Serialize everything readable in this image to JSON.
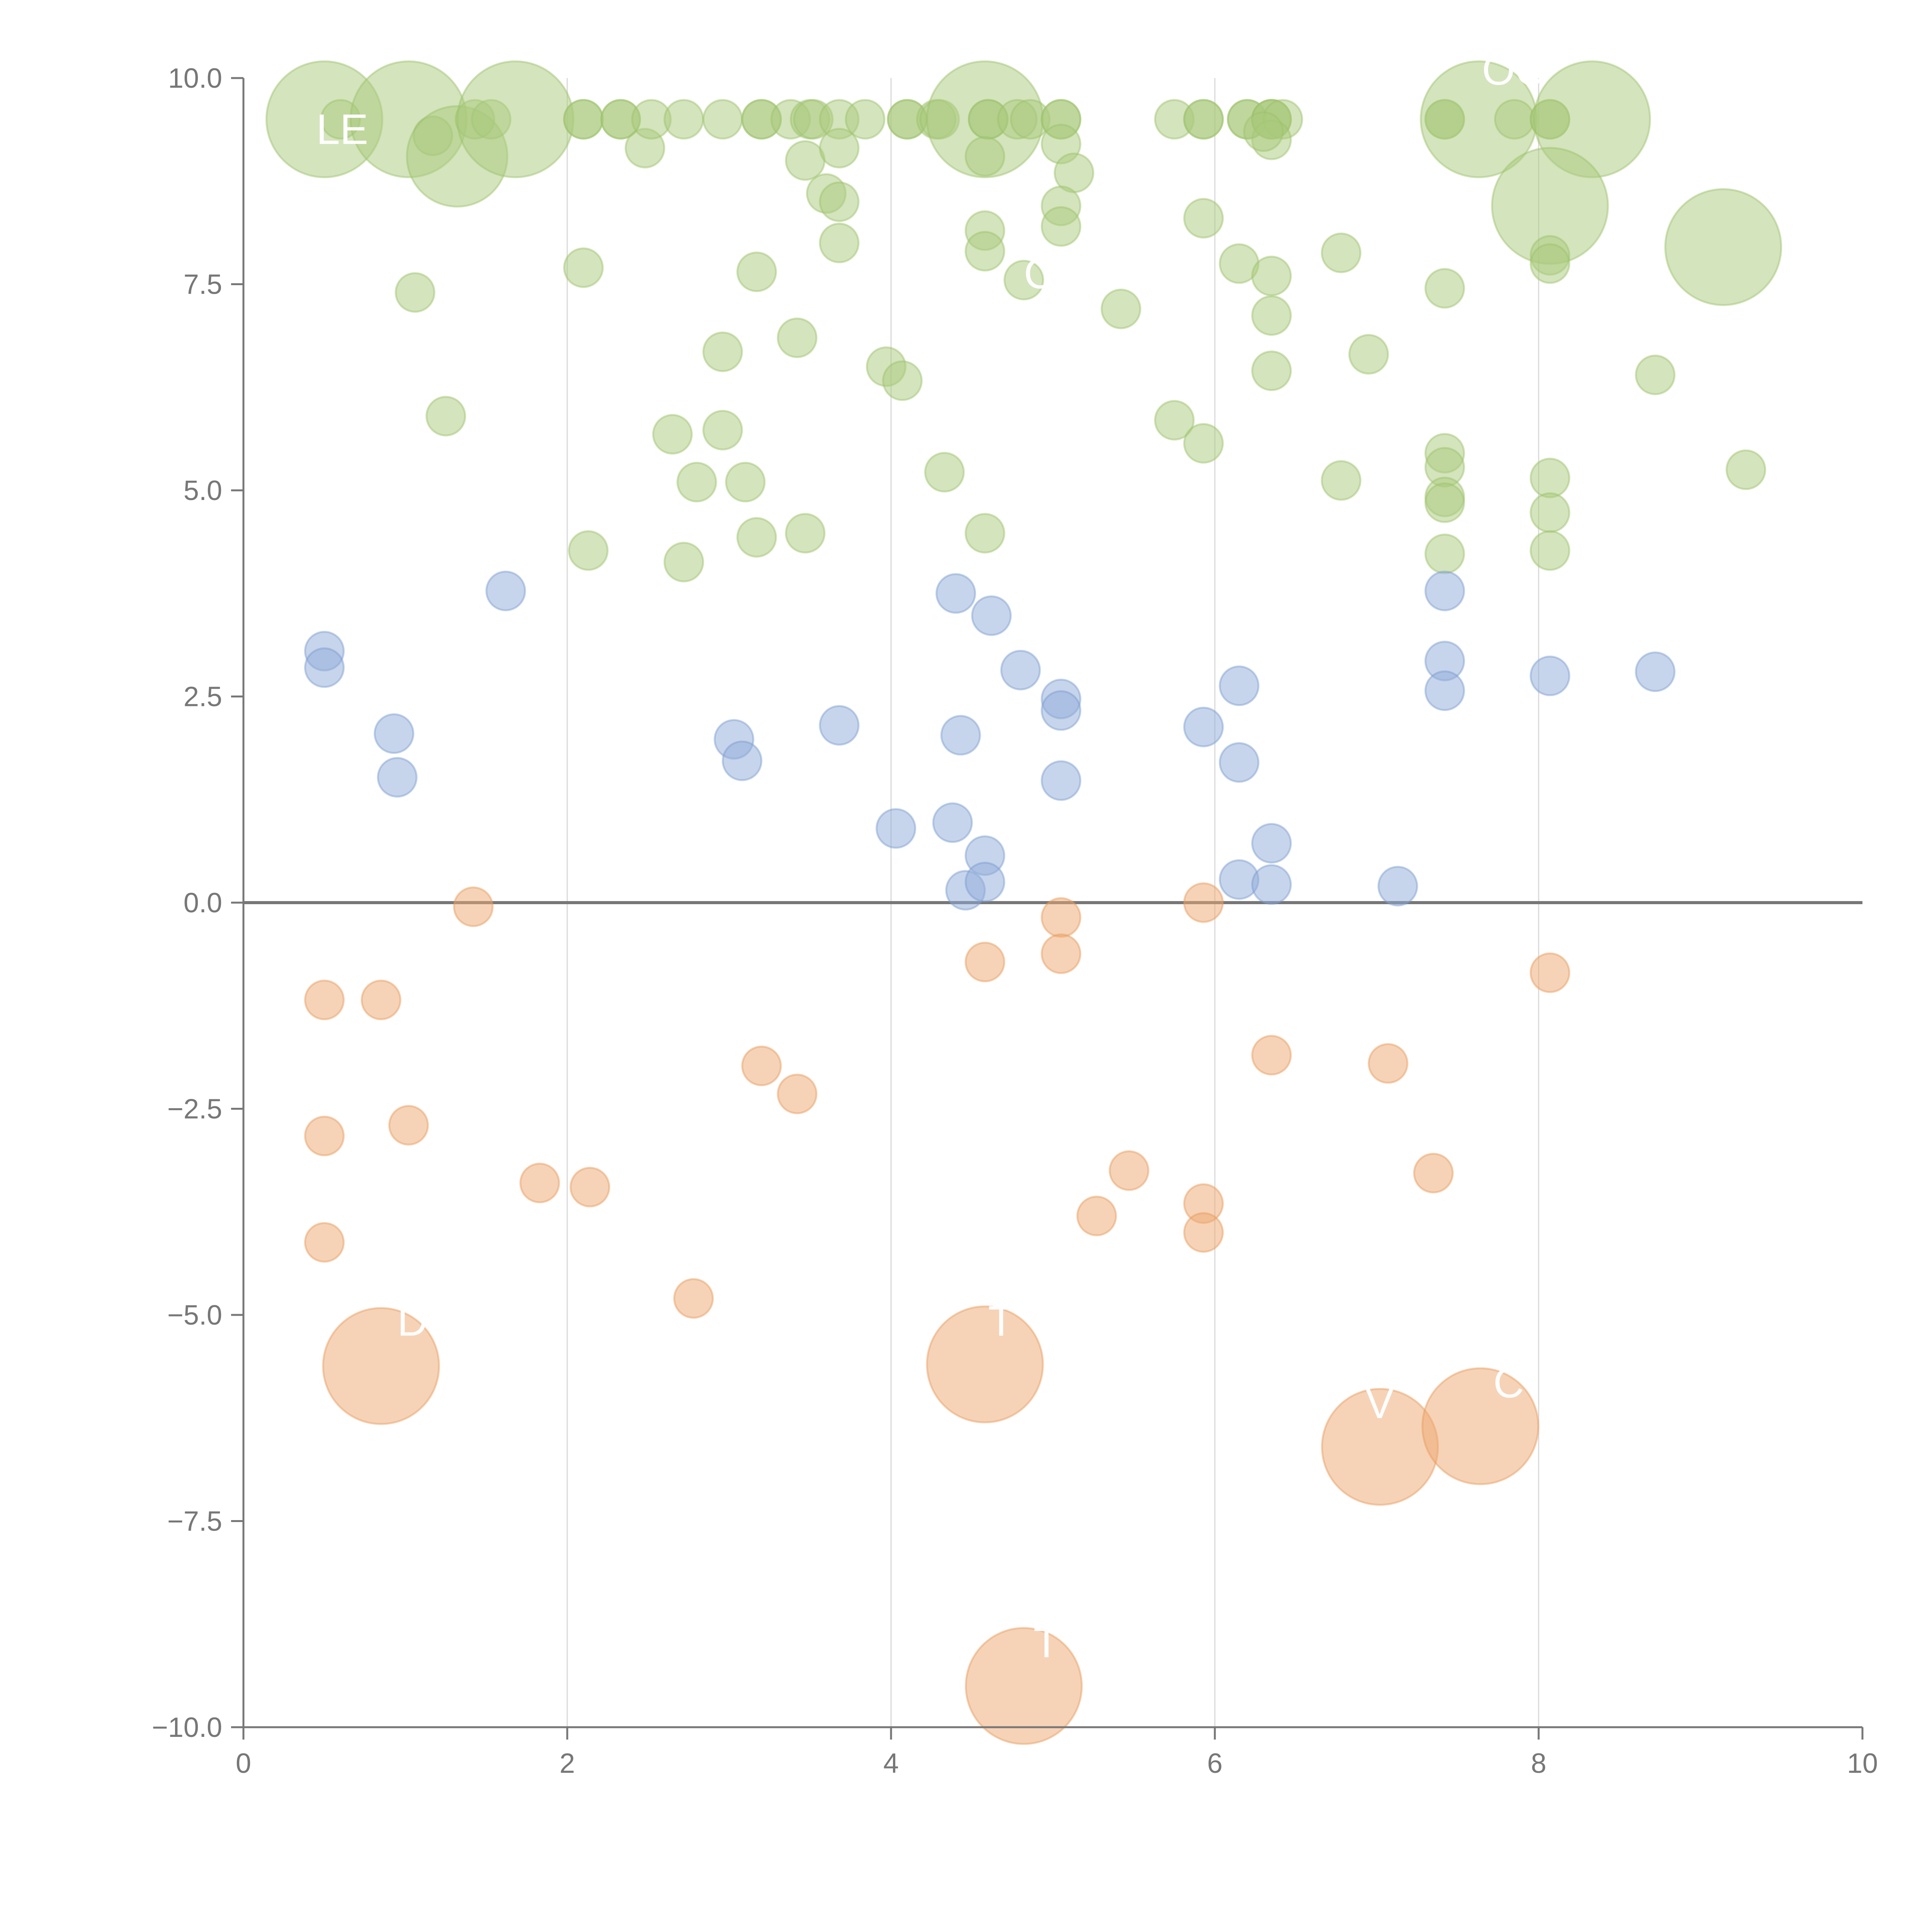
{
  "colors": {
    "axis": "#777777",
    "grid": "#d9d9d9",
    "zero_line": "#777777",
    "green_fill": "#a9c97c",
    "green_stroke": "#9cc26a",
    "green_dark": "#8fba55",
    "blue_fill": "#8fabd9",
    "blue_stroke": "#7b9ccf",
    "orange_fill": "#eda870",
    "orange_stroke": "#e79a5a",
    "label": "#ffffff"
  },
  "chart_data": {
    "type": "scatter",
    "title": "",
    "xlabel": "",
    "ylabel": "",
    "xlim": [
      0,
      10
    ],
    "ylim": [
      -10,
      10
    ],
    "grid": "vertical",
    "xticks": [
      0,
      2,
      4,
      6,
      8,
      10
    ],
    "xtick_labels": [
      "0",
      "2",
      "4",
      "6",
      "8",
      "10"
    ],
    "yticks": [
      -10,
      -7.5,
      -5,
      -2.5,
      0,
      2.5,
      5,
      7.5,
      10
    ],
    "ytick_labels": [
      "−10.0",
      "−7.5",
      "−5.0",
      "−2.5",
      "0.0",
      "2.5",
      "5.0",
      "7.5",
      "10.0"
    ],
    "size_units": {
      "s": 1,
      "m": 1.7,
      "l": 2.6,
      "xl": 3.0
    },
    "series": [
      {
        "name": "green",
        "color": "#a9c97c",
        "points": [
          [
            0.5,
            9.5,
            "xl"
          ],
          [
            0.6,
            9.5,
            "s"
          ],
          [
            1.02,
            9.5,
            "xl"
          ],
          [
            1.17,
            9.3,
            "s"
          ],
          [
            1.32,
            9.05,
            "l"
          ],
          [
            1.43,
            9.5,
            "s"
          ],
          [
            1.53,
            9.5,
            "s"
          ],
          [
            1.68,
            9.5,
            "xl"
          ],
          [
            2.1,
            9.5,
            "s"
          ],
          [
            2.1,
            9.5,
            "s"
          ],
          [
            2.33,
            9.5,
            "s"
          ],
          [
            2.33,
            9.5,
            "s"
          ],
          [
            2.48,
            9.15,
            "s"
          ],
          [
            2.52,
            9.5,
            "s"
          ],
          [
            2.72,
            9.5,
            "s"
          ],
          [
            2.96,
            9.5,
            "s"
          ],
          [
            3.2,
            9.5,
            "s"
          ],
          [
            3.2,
            9.5,
            "s"
          ],
          [
            3.38,
            9.5,
            "s"
          ],
          [
            3.47,
            9.0,
            "s"
          ],
          [
            3.5,
            9.5,
            "s"
          ],
          [
            3.52,
            9.5,
            "s"
          ],
          [
            3.68,
            9.5,
            "s"
          ],
          [
            3.68,
            9.15,
            "s"
          ],
          [
            3.6,
            8.6,
            "s"
          ],
          [
            3.68,
            8.5,
            "s"
          ],
          [
            3.68,
            8.0,
            "s"
          ],
          [
            3.84,
            9.5,
            "s"
          ],
          [
            4.1,
            9.5,
            "s"
          ],
          [
            4.1,
            9.5,
            "s"
          ],
          [
            4.28,
            9.5,
            "s"
          ],
          [
            4.3,
            9.5,
            "s"
          ],
          [
            4.58,
            9.5,
            "xl"
          ],
          [
            4.6,
            9.5,
            "s"
          ],
          [
            4.6,
            9.5,
            "s"
          ],
          [
            4.78,
            9.5,
            "s"
          ],
          [
            4.86,
            9.5,
            "s"
          ],
          [
            4.58,
            9.05,
            "s"
          ],
          [
            5.05,
            9.5,
            "s"
          ],
          [
            5.05,
            9.5,
            "s"
          ],
          [
            5.05,
            9.2,
            "s"
          ],
          [
            5.13,
            8.85,
            "s"
          ],
          [
            5.05,
            8.45,
            "s"
          ],
          [
            5.05,
            8.2,
            "s"
          ],
          [
            4.58,
            8.15,
            "s"
          ],
          [
            4.58,
            7.9,
            "s"
          ],
          [
            4.82,
            7.55,
            "s"
          ],
          [
            5.75,
            9.5,
            "s"
          ],
          [
            5.93,
            9.5,
            "s"
          ],
          [
            5.93,
            9.5,
            "s"
          ],
          [
            6.2,
            9.5,
            "s"
          ],
          [
            6.2,
            9.5,
            "s"
          ],
          [
            6.35,
            9.5,
            "s"
          ],
          [
            6.35,
            9.5,
            "s"
          ],
          [
            6.35,
            9.5,
            "s"
          ],
          [
            6.42,
            9.5,
            "s"
          ],
          [
            6.35,
            9.25,
            "s"
          ],
          [
            6.3,
            9.35,
            "s"
          ],
          [
            7.42,
            9.5,
            "s"
          ],
          [
            7.42,
            9.5,
            "s"
          ],
          [
            7.63,
            9.5,
            "xl"
          ],
          [
            7.85,
            9.5,
            "s"
          ],
          [
            8.07,
            9.5,
            "s"
          ],
          [
            8.07,
            9.5,
            "s"
          ],
          [
            8.33,
            9.5,
            "xl"
          ],
          [
            8.07,
            8.45,
            "xl"
          ],
          [
            8.07,
            7.85,
            "s"
          ],
          [
            8.07,
            7.75,
            "s"
          ],
          [
            9.14,
            7.95,
            "xl"
          ],
          [
            1.06,
            7.4,
            "s"
          ],
          [
            2.1,
            7.7,
            "s"
          ],
          [
            3.17,
            7.65,
            "s"
          ],
          [
            5.93,
            8.3,
            "s"
          ],
          [
            6.15,
            7.75,
            "s"
          ],
          [
            6.35,
            7.6,
            "s"
          ],
          [
            6.35,
            7.12,
            "s"
          ],
          [
            5.42,
            7.2,
            "s"
          ],
          [
            6.78,
            7.88,
            "s"
          ],
          [
            7.42,
            7.45,
            "s"
          ],
          [
            3.42,
            6.85,
            "s"
          ],
          [
            2.96,
            6.68,
            "s"
          ],
          [
            3.97,
            6.5,
            "s"
          ],
          [
            4.07,
            6.33,
            "s"
          ],
          [
            6.35,
            6.45,
            "s"
          ],
          [
            6.95,
            6.65,
            "s"
          ],
          [
            8.72,
            6.4,
            "s"
          ],
          [
            1.25,
            5.9,
            "s"
          ],
          [
            2.65,
            5.68,
            "s"
          ],
          [
            2.96,
            5.73,
            "s"
          ],
          [
            5.75,
            5.85,
            "s"
          ],
          [
            5.93,
            5.57,
            "s"
          ],
          [
            7.42,
            5.45,
            "s"
          ],
          [
            7.42,
            5.28,
            "s"
          ],
          [
            2.8,
            5.1,
            "s"
          ],
          [
            3.1,
            5.1,
            "s"
          ],
          [
            4.33,
            5.22,
            "s"
          ],
          [
            6.78,
            5.12,
            "s"
          ],
          [
            8.07,
            5.15,
            "s"
          ],
          [
            9.28,
            5.25,
            "s"
          ],
          [
            7.42,
            4.92,
            "s"
          ],
          [
            7.42,
            4.85,
            "s"
          ],
          [
            8.07,
            4.73,
            "s"
          ],
          [
            3.17,
            4.43,
            "s"
          ],
          [
            3.47,
            4.48,
            "s"
          ],
          [
            4.58,
            4.48,
            "s"
          ],
          [
            2.13,
            4.27,
            "s"
          ],
          [
            2.72,
            4.13,
            "s"
          ],
          [
            7.42,
            4.23,
            "s"
          ],
          [
            8.07,
            4.27,
            "s"
          ]
        ]
      },
      {
        "name": "blue",
        "color": "#8fabd9",
        "points": [
          [
            0.5,
            3.05,
            "s"
          ],
          [
            0.5,
            2.85,
            "s"
          ],
          [
            0.93,
            2.05,
            "s"
          ],
          [
            0.95,
            1.52,
            "s"
          ],
          [
            1.62,
            3.78,
            "s"
          ],
          [
            3.03,
            1.98,
            "s"
          ],
          [
            3.08,
            1.72,
            "s"
          ],
          [
            3.68,
            2.15,
            "s"
          ],
          [
            4.03,
            0.9,
            "s"
          ],
          [
            4.38,
            0.97,
            "s"
          ],
          [
            4.4,
            3.75,
            "s"
          ],
          [
            4.43,
            2.03,
            "s"
          ],
          [
            4.46,
            0.15,
            "s"
          ],
          [
            4.58,
            0.57,
            "s"
          ],
          [
            4.58,
            0.25,
            "s"
          ],
          [
            4.62,
            3.48,
            "s"
          ],
          [
            4.8,
            2.82,
            "s"
          ],
          [
            5.05,
            2.47,
            "s"
          ],
          [
            5.05,
            2.33,
            "s"
          ],
          [
            5.05,
            1.48,
            "s"
          ],
          [
            5.93,
            2.13,
            "s"
          ],
          [
            6.15,
            2.63,
            "s"
          ],
          [
            6.15,
            1.7,
            "s"
          ],
          [
            6.15,
            0.28,
            "s"
          ],
          [
            6.35,
            0.72,
            "s"
          ],
          [
            6.35,
            0.22,
            "s"
          ],
          [
            7.13,
            0.2,
            "s"
          ],
          [
            7.42,
            3.78,
            "s"
          ],
          [
            7.42,
            2.93,
            "s"
          ],
          [
            7.42,
            2.57,
            "s"
          ],
          [
            8.07,
            2.75,
            "s"
          ],
          [
            8.72,
            2.8,
            "s"
          ]
        ]
      },
      {
        "name": "orange",
        "color": "#eda870",
        "points": [
          [
            1.42,
            -0.05,
            "s"
          ],
          [
            0.5,
            -1.18,
            "s"
          ],
          [
            0.85,
            -1.18,
            "s"
          ],
          [
            0.5,
            -2.83,
            "s"
          ],
          [
            1.02,
            -2.7,
            "s"
          ],
          [
            0.5,
            -4.12,
            "s"
          ],
          [
            1.83,
            -3.4,
            "s"
          ],
          [
            2.14,
            -3.45,
            "s"
          ],
          [
            2.78,
            -4.8,
            "s"
          ],
          [
            3.2,
            -1.98,
            "s"
          ],
          [
            3.42,
            -2.32,
            "s"
          ],
          [
            4.58,
            -0.72,
            "s"
          ],
          [
            5.05,
            -0.18,
            "s"
          ],
          [
            5.05,
            -0.62,
            "s"
          ],
          [
            5.27,
            -3.8,
            "s"
          ],
          [
            5.47,
            -3.25,
            "s"
          ],
          [
            5.93,
            0.0,
            "s"
          ],
          [
            5.93,
            -3.65,
            "s"
          ],
          [
            5.93,
            -4.0,
            "s"
          ],
          [
            6.35,
            -1.85,
            "s"
          ],
          [
            7.07,
            -1.95,
            "s"
          ],
          [
            7.35,
            -3.28,
            "s"
          ],
          [
            8.07,
            -0.85,
            "s"
          ],
          [
            0.85,
            -5.62,
            "xl"
          ],
          [
            4.58,
            -5.6,
            "xl"
          ],
          [
            7.02,
            -6.6,
            "xl"
          ],
          [
            7.64,
            -6.35,
            "xl"
          ],
          [
            4.82,
            -9.5,
            "xl"
          ]
        ]
      }
    ],
    "annotations": [
      {
        "text": "LE",
        "x": 0.45,
        "y": 9.2
      },
      {
        "text": "D",
        "x": 0.95,
        "y": -5.25
      },
      {
        "text": "T",
        "x": 4.6,
        "y": -5.25
      },
      {
        "text": "V",
        "x": 6.93,
        "y": -6.25
      },
      {
        "text": "C",
        "x": 7.72,
        "y": -6.0
      },
      {
        "text": "T",
        "x": 4.88,
        "y": -9.15
      },
      {
        "text": "OC",
        "x": 7.65,
        "y": 9.92
      },
      {
        "text": "C",
        "x": 4.82,
        "y": 7.45
      }
    ]
  }
}
